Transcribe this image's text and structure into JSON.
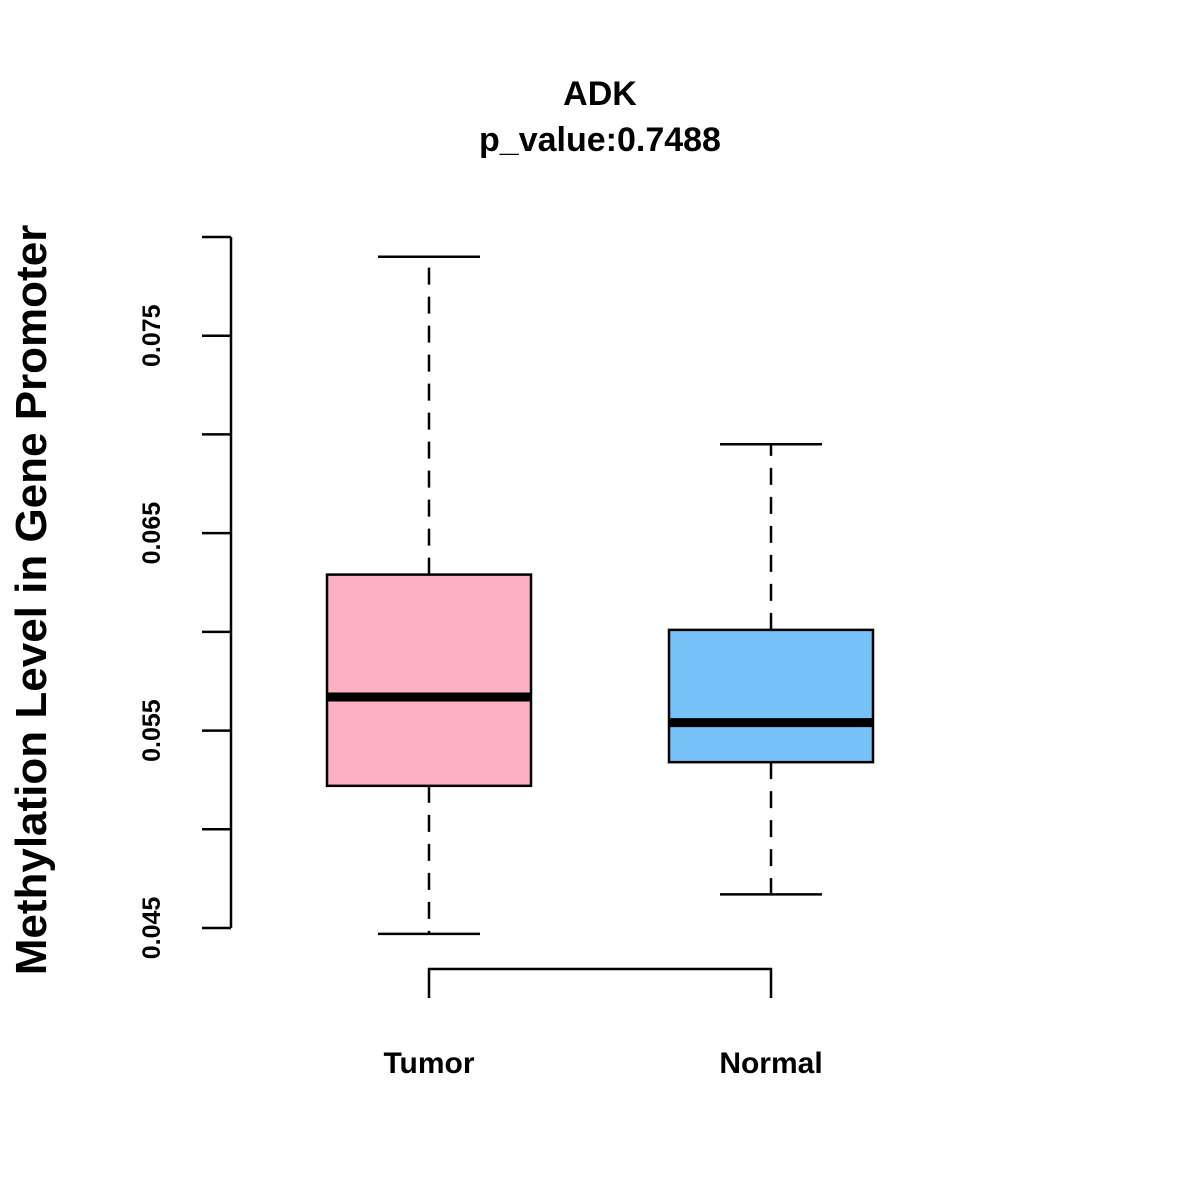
{
  "chart_data": {
    "type": "boxplot",
    "title": "ADK",
    "subtitle": "p_value:0.7488",
    "xlabel": "",
    "ylabel": "Methylation Level in Gene Promoter",
    "ylim": [
      0.045,
      0.08
    ],
    "yticks": [
      0.045,
      0.05,
      0.055,
      0.06,
      0.065,
      0.07,
      0.075,
      0.08
    ],
    "ytick_labels": [
      "0.045",
      "",
      "0.055",
      "",
      "0.065",
      "",
      "0.075",
      ""
    ],
    "categories": [
      "Tumor",
      "Normal"
    ],
    "boxes": [
      {
        "name": "Tumor",
        "whisker_low": 0.0447,
        "q1": 0.0522,
        "median": 0.0567,
        "q3": 0.0629,
        "whisker_high": 0.079,
        "color": "#FBB1C2"
      },
      {
        "name": "Normal",
        "whisker_low": 0.0467,
        "q1": 0.0534,
        "median": 0.0554,
        "q3": 0.0601,
        "whisker_high": 0.0695,
        "color": "#76C2F8"
      }
    ],
    "comparison_bracket": {
      "from": "Tumor",
      "to": "Normal"
    },
    "grid": false,
    "legend": "none"
  }
}
